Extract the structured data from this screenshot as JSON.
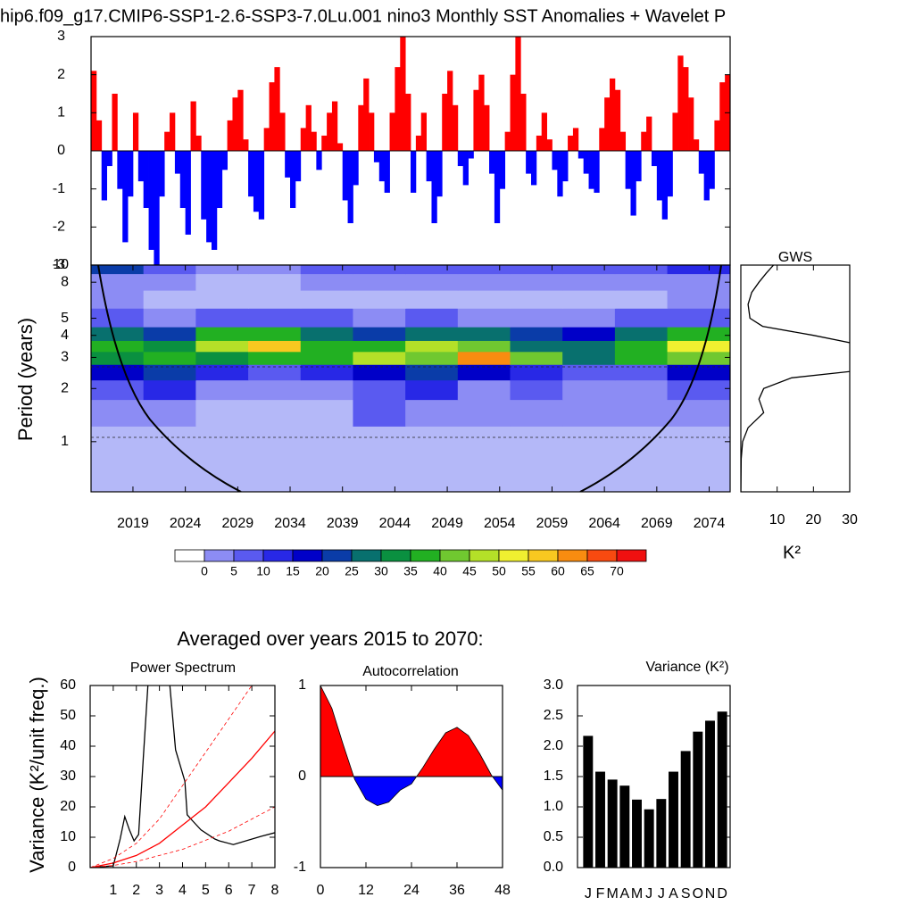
{
  "chart_data": [
    {
      "type": "bar",
      "title": "hip6.f09_g17.CMIP6-SSP1-2.6-SSP3-7.0Lu.001 nino3 Monthly SST Anomalies + Wavelet P",
      "x": [
        2015,
        2015.5,
        2016,
        2016.5,
        2017,
        2017.5,
        2018,
        2018.5,
        2019,
        2019.5,
        2020,
        2020.5,
        2021,
        2021.5,
        2022,
        2022.5,
        2023,
        2023.5,
        2024,
        2024.5,
        2025,
        2025.5,
        2026,
        2026.5,
        2027,
        2027.5,
        2028,
        2028.5,
        2029,
        2029.5,
        2030,
        2030.5,
        2031,
        2031.5,
        2032,
        2032.5,
        2033,
        2033.5,
        2034,
        2034.5,
        2035,
        2035.5,
        2036,
        2036.5,
        2037,
        2037.5,
        2038,
        2038.5,
        2039,
        2039.5,
        2040,
        2040.5,
        2041,
        2041.5,
        2042,
        2042.5,
        2043,
        2043.5,
        2044,
        2044.5,
        2045,
        2045.5,
        2046,
        2046.5,
        2047,
        2047.5,
        2048,
        2048.5,
        2049,
        2049.5,
        2050,
        2050.5,
        2051,
        2051.5,
        2052,
        2052.5,
        2053,
        2053.5,
        2054,
        2054.5,
        2055,
        2055.5,
        2056,
        2056.5,
        2057,
        2057.5,
        2058,
        2058.5,
        2059,
        2059.5,
        2060,
        2060.5,
        2061,
        2061.5,
        2062,
        2062.5,
        2063,
        2063.5,
        2064,
        2064.5,
        2065,
        2065.5,
        2066,
        2066.5,
        2067,
        2067.5,
        2068,
        2068.5,
        2069,
        2069.5,
        2070,
        2070.5,
        2071,
        2071.5,
        2072,
        2072.5,
        2073,
        2073.5,
        2074,
        2074.5,
        2075,
        2075.5
      ],
      "values": [
        2.1,
        0.8,
        -1.3,
        -0.4,
        1.5,
        -1.0,
        -2.4,
        -1.2,
        1.0,
        -0.8,
        -1.5,
        -2.6,
        -3.0,
        -1.2,
        0.5,
        1.0,
        -0.6,
        -1.5,
        -2.2,
        1.3,
        0.4,
        -1.8,
        -2.4,
        -2.6,
        -1.5,
        -0.5,
        0.8,
        1.4,
        1.6,
        0.3,
        -1.2,
        -1.6,
        -1.8,
        0.6,
        1.8,
        2.2,
        1.0,
        -0.7,
        -1.5,
        -0.8,
        0.6,
        1.2,
        0.5,
        -0.5,
        0.4,
        1.0,
        1.3,
        0.2,
        -1.3,
        -1.9,
        -0.9,
        1.2,
        1.9,
        1.0,
        -0.3,
        -0.8,
        -1.1,
        1.0,
        2.2,
        3.0,
        1.5,
        -1.1,
        0.4,
        1.0,
        -0.8,
        -1.9,
        -1.2,
        1.5,
        2.1,
        1.2,
        -0.4,
        -0.9,
        -0.2,
        1.6,
        2.0,
        1.2,
        -0.6,
        -1.9,
        -1.0,
        0.5,
        2.0,
        3.0,
        1.5,
        -0.6,
        -0.9,
        0.4,
        1.0,
        0.3,
        -0.5,
        -1.2,
        -0.8,
        0.4,
        0.6,
        -0.2,
        -0.6,
        -1.0,
        -1.1,
        0.6,
        1.4,
        1.9,
        1.6,
        0.5,
        -1.0,
        -1.7,
        -0.8,
        0.5,
        0.9,
        -0.4,
        -1.3,
        -1.8,
        -1.2,
        1.0,
        2.5,
        2.2,
        1.4,
        0.3,
        -0.6,
        -1.3,
        -1.0,
        0.8,
        1.8,
        2.0
      ],
      "positive_color": "#ff0000",
      "negative_color": "#0000ff",
      "xlim": [
        2015,
        2076
      ],
      "ylim": [
        -3,
        3
      ],
      "yticks": [
        -3,
        -2,
        -1,
        0,
        1,
        2,
        3
      ]
    },
    {
      "type": "heatmap",
      "ylabel": "Period (years)",
      "x": [
        2017.5,
        2022.5,
        2027.5,
        2032.5,
        2037.5,
        2042.5,
        2047.5,
        2052.5,
        2057.5,
        2062.5,
        2067.5,
        2072.5
      ],
      "y": [
        1,
        1.5,
        2,
        2.5,
        3,
        3.5,
        4,
        5,
        6.5,
        8,
        10
      ],
      "values": [
        [
          3,
          3,
          2,
          2,
          2,
          3,
          3,
          3,
          4,
          3,
          3,
          4
        ],
        [
          8,
          6,
          4,
          3,
          4,
          10,
          8,
          6,
          8,
          7,
          6,
          9
        ],
        [
          14,
          16,
          8,
          6,
          8,
          12,
          18,
          8,
          10,
          9,
          8,
          10
        ],
        [
          22,
          26,
          18,
          14,
          16,
          22,
          28,
          20,
          16,
          14,
          14,
          22
        ],
        [
          38,
          44,
          36,
          44,
          44,
          50,
          46,
          68,
          46,
          34,
          40,
          46
        ],
        [
          44,
          36,
          54,
          60,
          44,
          40,
          52,
          48,
          34,
          30,
          42,
          56
        ],
        [
          30,
          28,
          40,
          44,
          30,
          28,
          34,
          30,
          26,
          24,
          30,
          40
        ],
        [
          12,
          8,
          10,
          12,
          10,
          9,
          10,
          8,
          8,
          8,
          10,
          14
        ],
        [
          6,
          4,
          3,
          3,
          3,
          3,
          4,
          3,
          3,
          3,
          4,
          6
        ],
        [
          8,
          6,
          4,
          4,
          6,
          8,
          8,
          6,
          6,
          6,
          7,
          8
        ],
        [
          28,
          14,
          8,
          8,
          10,
          12,
          12,
          10,
          10,
          10,
          12,
          18
        ]
      ],
      "xlim": [
        2015,
        2076
      ],
      "ylim": [
        0.52,
        10
      ],
      "ylog": true,
      "xticks": [
        2019,
        2024,
        2029,
        2034,
        2039,
        2044,
        2049,
        2054,
        2059,
        2064,
        2069,
        2074
      ],
      "yticks": [
        1,
        2,
        3,
        4,
        5,
        8,
        10
      ],
      "colors": [
        "#ffffff",
        "#b4b8f8",
        "#8c8cf4",
        "#5a5af0",
        "#2828e6",
        "#0000c8",
        "#0a3ca8",
        "#08706e",
        "#0a9040",
        "#22b022",
        "#70c830",
        "#b4e028",
        "#f0f030",
        "#f8c820",
        "#f88c10",
        "#f84a10",
        "#f01010"
      ],
      "levels": [
        0,
        5,
        10,
        15,
        20,
        25,
        30,
        35,
        40,
        45,
        50,
        55,
        60,
        65,
        70
      ]
    },
    {
      "type": "line",
      "title": "GWS",
      "xlabel": "K²",
      "orientation": "horizontal",
      "y": [
        0.52,
        0.8,
        1,
        1.2,
        1.46,
        1.74,
        2,
        2.3,
        2.6,
        3,
        3.5,
        4,
        4.5,
        5,
        6,
        7,
        8,
        9,
        10
      ],
      "values": [
        0,
        0.1,
        0.5,
        2,
        6.3,
        5,
        6.3,
        14,
        38,
        40,
        34,
        20,
        6,
        2.5,
        2,
        3,
        5,
        7,
        9
      ],
      "color": "#000000",
      "xlim": [
        0,
        30
      ],
      "ylim": [
        0.52,
        10
      ],
      "ylog": true,
      "xticks": [
        10,
        20,
        30
      ]
    },
    {
      "type": "line",
      "heading": "Averaged over years 2015 to 2070:",
      "title": "Power Spectrum",
      "ylabel": "Variance (K²/unit freq.)",
      "series": [
        {
          "color": "#000000",
          "dash": false,
          "x": [
            0,
            1,
            1.3,
            1.5,
            1.7,
            1.9,
            2.1,
            2.3,
            2.5,
            3.0,
            3.45,
            3.7,
            4.1,
            4.2,
            4.45,
            4.8,
            5.4,
            5.6,
            6.2,
            7.4,
            8
          ],
          "values": [
            0,
            0.6,
            9.4,
            16.8,
            12.4,
            8.8,
            10.9,
            35.9,
            60,
            95,
            60,
            38.8,
            28.5,
            17.4,
            15.3,
            12.4,
            9.4,
            8.8,
            7.6,
            10.3,
            11.5
          ]
        },
        {
          "color": "#ff0000",
          "dash": false,
          "x": [
            0,
            1,
            2,
            3,
            4,
            5,
            6,
            7,
            8
          ],
          "values": [
            0,
            1.5,
            4,
            8,
            14,
            20,
            28,
            36,
            45
          ]
        },
        {
          "color": "#ff0000",
          "dash": true,
          "x": [
            0,
            1,
            2,
            3,
            4,
            5,
            6,
            7,
            8
          ],
          "values": [
            0,
            3,
            8,
            16,
            27,
            38,
            49,
            60,
            72
          ]
        },
        {
          "color": "#ff0000",
          "dash": true,
          "x": [
            0,
            1,
            2,
            3,
            4,
            5,
            6,
            7,
            8
          ],
          "values": [
            0,
            0.7,
            2,
            4,
            6,
            9,
            12,
            16,
            20
          ]
        }
      ],
      "xlim": [
        0,
        8
      ],
      "ylim": [
        0,
        60
      ],
      "xticks": [
        1,
        2,
        3,
        4,
        5,
        6,
        7,
        8
      ],
      "yticks": [
        0,
        10,
        20,
        30,
        40,
        50,
        60
      ]
    },
    {
      "type": "area",
      "title": "Autocorrelation",
      "x": [
        0,
        3,
        6,
        9,
        12,
        15,
        18,
        21,
        24,
        27,
        30,
        33,
        36,
        39,
        42,
        45,
        48
      ],
      "values": [
        1,
        0.75,
        0.35,
        -0.03,
        -0.25,
        -0.32,
        -0.28,
        -0.15,
        -0.08,
        0.1,
        0.3,
        0.48,
        0.54,
        0.45,
        0.25,
        0.02,
        -0.15
      ],
      "positive_color": "#ff0000",
      "negative_color": "#0000ff",
      "xlim": [
        0,
        48
      ],
      "ylim": [
        -1,
        1
      ],
      "xticks": [
        0,
        12,
        24,
        36,
        48
      ],
      "yticks": [
        -1,
        0,
        1
      ]
    },
    {
      "type": "bar",
      "title": "Variance (K²)",
      "categories": [
        "J",
        "F",
        "M",
        "A",
        "M",
        "J",
        "J",
        "A",
        "S",
        "O",
        "N",
        "D"
      ],
      "values": [
        2.17,
        1.58,
        1.45,
        1.35,
        1.12,
        0.96,
        1.13,
        1.58,
        1.92,
        2.24,
        2.42,
        2.57
      ],
      "color": "#000000",
      "ylim": [
        0,
        3
      ],
      "yticks": [
        {
          "value": 0,
          "label": "0.0"
        },
        0.5,
        {
          "value": 1,
          "label": "1.0"
        },
        1.5,
        {
          "value": 2,
          "label": "2.0"
        },
        2.5,
        {
          "value": 3,
          "label": "3.0"
        }
      ]
    }
  ]
}
